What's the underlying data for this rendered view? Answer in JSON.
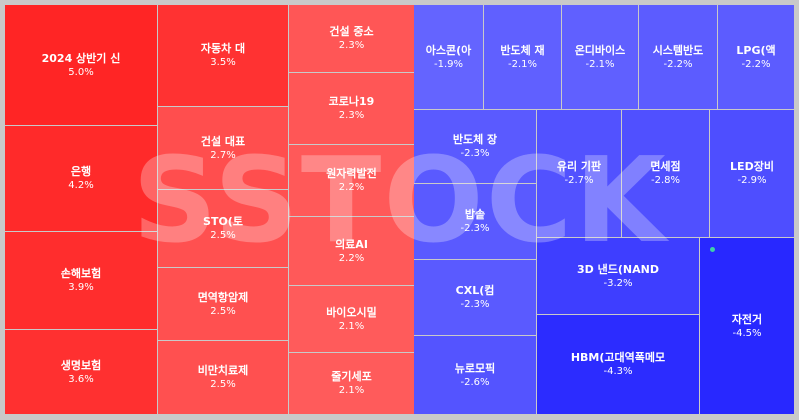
{
  "chart_data": {
    "type": "treemap",
    "watermark": "SSTOCK",
    "tiles": [
      {
        "name": "2024 상반기 신",
        "value": "5.0%",
        "change": 5.0,
        "color": "#ff2525"
      },
      {
        "name": "은행",
        "value": "4.2%",
        "change": 4.2,
        "color": "#ff2a2a"
      },
      {
        "name": "손해보험",
        "value": "3.9%",
        "change": 3.9,
        "color": "#ff2d2d"
      },
      {
        "name": "생명보험",
        "value": "3.6%",
        "change": 3.6,
        "color": "#ff3030"
      },
      {
        "name": "자동차 대",
        "value": "3.5%",
        "change": 3.5,
        "color": "#ff3232"
      },
      {
        "name": "건설 대표",
        "value": "2.7%",
        "change": 2.7,
        "color": "#ff4e4e"
      },
      {
        "name": "STO(토",
        "value": "2.5%",
        "change": 2.5,
        "color": "#ff5050"
      },
      {
        "name": "면역항암제",
        "value": "2.5%",
        "change": 2.5,
        "color": "#ff5050"
      },
      {
        "name": "비만치료제",
        "value": "2.5%",
        "change": 2.5,
        "color": "#ff5050"
      },
      {
        "name": "건설 중소",
        "value": "2.3%",
        "change": 2.3,
        "color": "#ff5656"
      },
      {
        "name": "코로나19",
        "value": "2.3%",
        "change": 2.3,
        "color": "#ff5656"
      },
      {
        "name": "원자력발전",
        "value": "2.2%",
        "change": 2.2,
        "color": "#ff5959"
      },
      {
        "name": "의료AI",
        "value": "2.2%",
        "change": 2.2,
        "color": "#ff5959"
      },
      {
        "name": "바이오시밀",
        "value": "2.1%",
        "change": 2.1,
        "color": "#ff5b5b"
      },
      {
        "name": "줄기세포",
        "value": "2.1%",
        "change": 2.1,
        "color": "#ff5b5b"
      },
      {
        "name": "아스콘(아",
        "value": "-1.9%",
        "change": -1.9,
        "color": "#6464ff"
      },
      {
        "name": "반도체 재",
        "value": "-2.1%",
        "change": -2.1,
        "color": "#6060ff"
      },
      {
        "name": "온디바이스",
        "value": "-2.1%",
        "change": -2.1,
        "color": "#6060ff"
      },
      {
        "name": "시스템반도",
        "value": "-2.2%",
        "change": -2.2,
        "color": "#5c5cff"
      },
      {
        "name": "LPG(액",
        "value": "-2.2%",
        "change": -2.2,
        "color": "#5c5cff"
      },
      {
        "name": "반도체 장",
        "value": "-2.3%",
        "change": -2.3,
        "color": "#5a5aff"
      },
      {
        "name": "밥솥",
        "value": "-2.3%",
        "change": -2.3,
        "color": "#5a5aff"
      },
      {
        "name": "CXL(컴",
        "value": "-2.3%",
        "change": -2.3,
        "color": "#5a5aff"
      },
      {
        "name": "뉴로모픽",
        "value": "-2.6%",
        "change": -2.6,
        "color": "#5454ff"
      },
      {
        "name": "유리 기판",
        "value": "-2.7%",
        "change": -2.7,
        "color": "#5252ff"
      },
      {
        "name": "면세점",
        "value": "-2.8%",
        "change": -2.8,
        "color": "#5050ff"
      },
      {
        "name": "LED장비",
        "value": "-2.9%",
        "change": -2.9,
        "color": "#4e4eff"
      },
      {
        "name": "3D 낸드(NAND",
        "value": "-3.2%",
        "change": -3.2,
        "color": "#3e3eff"
      },
      {
        "name": "HBM(고대역폭메모",
        "value": "-4.3%",
        "change": -4.3,
        "color": "#2c2cff"
      },
      {
        "name": "자전거",
        "value": "-4.5%",
        "change": -4.5,
        "color": "#2828ff"
      }
    ]
  }
}
